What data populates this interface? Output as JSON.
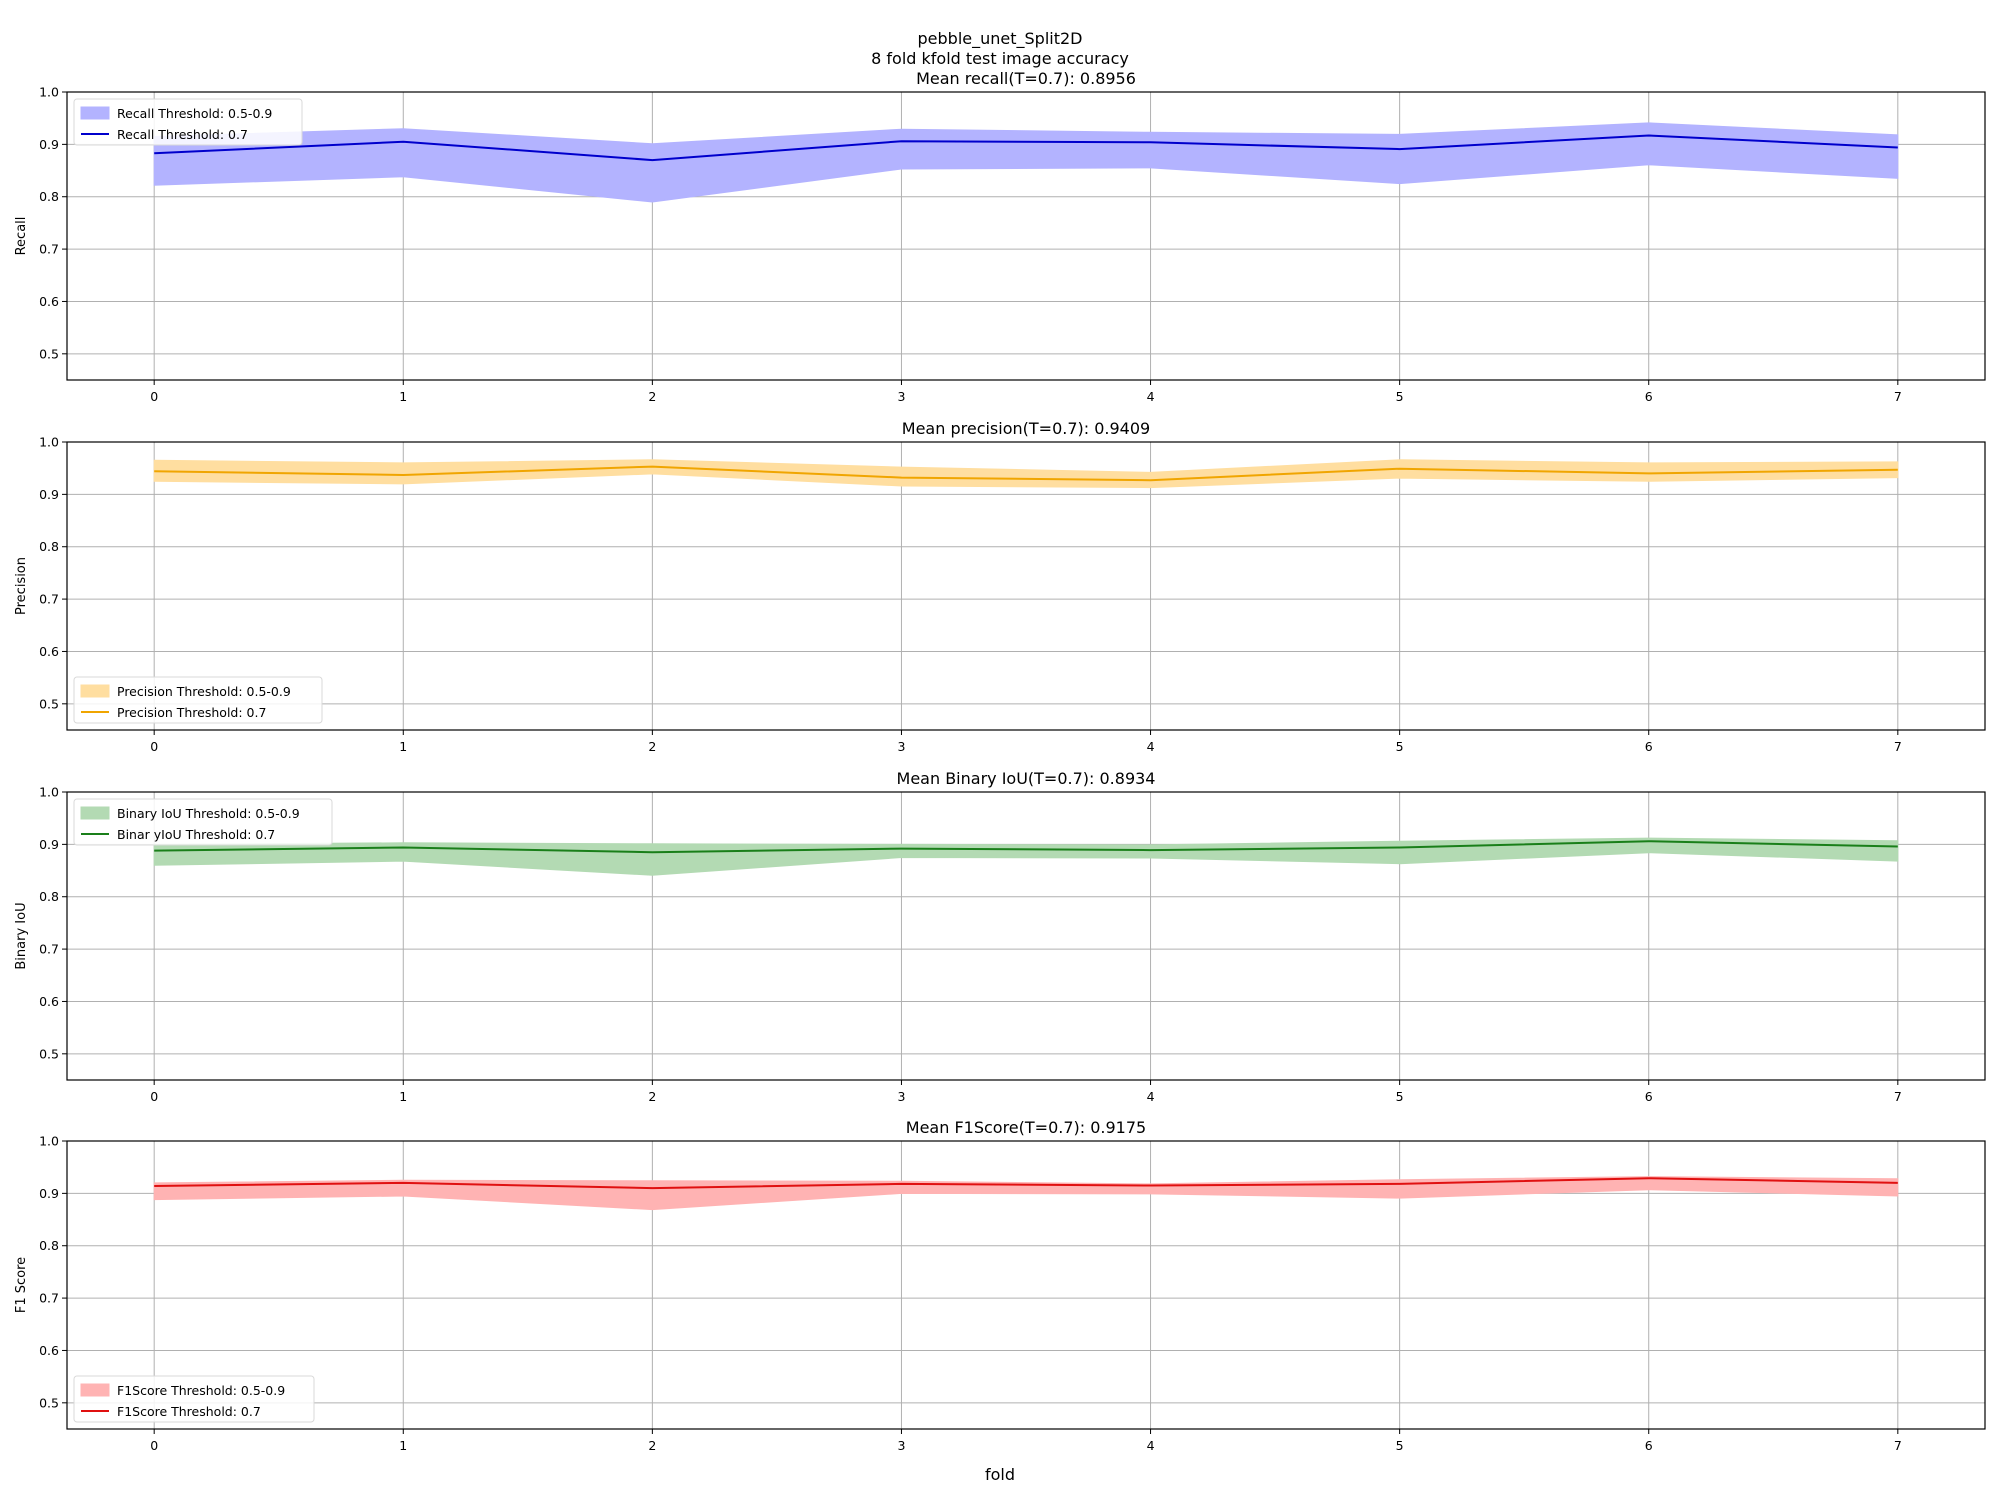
{
  "figure": {
    "suptitle_line1": "pebble_unet_Split2D",
    "suptitle_line2": "8 fold kfold test image accuracy",
    "xlabel": "fold"
  },
  "chart_data": [
    {
      "type": "line",
      "title": "Mean recall(T=0.7): 0.8956",
      "ylabel": "Recall",
      "xlabel": "fold",
      "x": [
        0,
        1,
        2,
        3,
        4,
        5,
        6,
        7
      ],
      "xlim": [
        -0.35,
        7.35
      ],
      "ylim": [
        0.45,
        1.0
      ],
      "yticks": [
        "0.5",
        "0.6",
        "0.7",
        "0.8",
        "0.9",
        "1.0"
      ],
      "grid": true,
      "legend_position": "upper-left",
      "color": "#0000cc",
      "band_color": "#b3b3ff",
      "band_label": "Recall Threshold: 0.5-0.9",
      "line_label": "Recall Threshold: 0.7",
      "line": [
        0.883,
        0.905,
        0.87,
        0.906,
        0.904,
        0.891,
        0.917,
        0.894
      ],
      "band_lower": [
        0.822,
        0.838,
        0.79,
        0.853,
        0.855,
        0.825,
        0.861,
        0.835
      ],
      "band_upper": [
        0.915,
        0.93,
        0.901,
        0.929,
        0.923,
        0.919,
        0.941,
        0.918
      ]
    },
    {
      "type": "line",
      "title": "Mean precision(T=0.7): 0.9409",
      "ylabel": "Precision",
      "xlabel": "fold",
      "x": [
        0,
        1,
        2,
        3,
        4,
        5,
        6,
        7
      ],
      "xlim": [
        -0.35,
        7.35
      ],
      "ylim": [
        0.45,
        1.0
      ],
      "yticks": [
        "0.5",
        "0.6",
        "0.7",
        "0.8",
        "0.9",
        "1.0"
      ],
      "grid": true,
      "legend_position": "lower-left",
      "color": "#f0a500",
      "band_color": "#ffdea0",
      "band_label": "Precision Threshold: 0.5-0.9",
      "line_label": "Precision Threshold: 0.7",
      "line": [
        0.944,
        0.937,
        0.953,
        0.932,
        0.927,
        0.949,
        0.94,
        0.947
      ],
      "band_lower": [
        0.925,
        0.92,
        0.939,
        0.916,
        0.913,
        0.931,
        0.925,
        0.932
      ],
      "band_upper": [
        0.965,
        0.96,
        0.966,
        0.952,
        0.942,
        0.966,
        0.96,
        0.962
      ]
    },
    {
      "type": "line",
      "title": "Mean Binary IoU(T=0.7): 0.8934",
      "ylabel": "Binary IoU",
      "xlabel": "fold",
      "x": [
        0,
        1,
        2,
        3,
        4,
        5,
        6,
        7
      ],
      "xlim": [
        -0.35,
        7.35
      ],
      "ylim": [
        0.45,
        1.0
      ],
      "yticks": [
        "0.5",
        "0.6",
        "0.7",
        "0.8",
        "0.9",
        "1.0"
      ],
      "grid": true,
      "legend_position": "upper-left",
      "color": "#1a7f1a",
      "band_color": "#b3dab3",
      "band_label": "Binary IoU Threshold: 0.5-0.9",
      "line_label": "Binar yIoU Threshold: 0.7",
      "line": [
        0.888,
        0.894,
        0.885,
        0.892,
        0.889,
        0.894,
        0.906,
        0.896
      ],
      "band_lower": [
        0.86,
        0.868,
        0.841,
        0.875,
        0.874,
        0.863,
        0.884,
        0.868
      ],
      "band_upper": [
        0.9,
        0.903,
        0.901,
        0.9,
        0.899,
        0.906,
        0.912,
        0.907
      ]
    },
    {
      "type": "line",
      "title": "Mean F1Score(T=0.7): 0.9175",
      "ylabel": "F1 Score",
      "xlabel": "fold",
      "x": [
        0,
        1,
        2,
        3,
        4,
        5,
        6,
        7
      ],
      "xlim": [
        -0.35,
        7.35
      ],
      "ylim": [
        0.45,
        1.0
      ],
      "yticks": [
        "0.5",
        "0.6",
        "0.7",
        "0.8",
        "0.9",
        "1.0"
      ],
      "grid": true,
      "legend_position": "lower-left",
      "color": "#e01010",
      "band_color": "#ffb3b3",
      "band_label": "F1Score Threshold: 0.5-0.9",
      "line_label": "F1Score Threshold: 0.7",
      "line": [
        0.914,
        0.92,
        0.91,
        0.918,
        0.915,
        0.918,
        0.929,
        0.92
      ],
      "band_lower": [
        0.888,
        0.895,
        0.869,
        0.9,
        0.899,
        0.891,
        0.907,
        0.895
      ],
      "band_upper": [
        0.92,
        0.925,
        0.924,
        0.923,
        0.918,
        0.926,
        0.932,
        0.928
      ]
    }
  ]
}
